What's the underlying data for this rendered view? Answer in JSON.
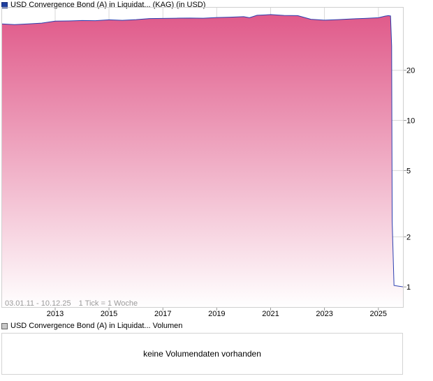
{
  "price_legend": "USD Convergence Bond (A) in Liquidat... (KAG) (in USD)",
  "volume_legend": "USD Convergence Bond (A) in Liquidat... Volumen",
  "range_label": "03.01.11 - 10.12.25",
  "tick_label": "1 Tick = 1 Woche",
  "volume_message": "keine Volumendaten vorhanden",
  "colors": {
    "line": "#2b3fb0",
    "fill_top": "#e05a8a",
    "fill_bottom": "#ffffff",
    "grid": "#d9d9d9"
  },
  "chart_data": {
    "type": "area",
    "yscale": "log",
    "ylim": [
      0.75,
      48
    ],
    "xlim": [
      "2011-01-03",
      "2025-12-10"
    ],
    "x_ticks": [
      "2013",
      "2015",
      "2017",
      "2019",
      "2021",
      "2023",
      "2025"
    ],
    "y_ticks": [
      1,
      2,
      5,
      10,
      20
    ],
    "grid": true,
    "series": [
      {
        "x": [
          "2011-01-03",
          "2011-07-01",
          "2012-01-02",
          "2012-07-02",
          "2013-01-02",
          "2013-07-01",
          "2014-01-02",
          "2014-07-01",
          "2015-01-02",
          "2015-07-01",
          "2016-01-04",
          "2016-07-01",
          "2017-01-02",
          "2017-07-03",
          "2018-01-02",
          "2018-07-02",
          "2019-01-02",
          "2019-07-01",
          "2020-01-02",
          "2020-03-20",
          "2020-07-01",
          "2021-01-04",
          "2021-07-01",
          "2022-01-03",
          "2022-07-01",
          "2023-01-02",
          "2023-07-03",
          "2024-01-02",
          "2024-07-01",
          "2025-01-02",
          "2025-04-01",
          "2025-05-15",
          "2025-06-15",
          "2025-06-30",
          "2025-07-07",
          "2025-08-01",
          "2025-10-01",
          "2025-12-10"
        ],
        "values": [
          38.0,
          37.6,
          38.0,
          38.4,
          39.5,
          39.6,
          39.8,
          39.7,
          40.2,
          39.9,
          40.3,
          40.9,
          41.0,
          41.1,
          41.2,
          41.1,
          41.5,
          41.7,
          42.0,
          41.4,
          42.8,
          43.2,
          42.7,
          42.6,
          40.5,
          40.0,
          40.3,
          40.7,
          41.0,
          41.4,
          42.3,
          42.6,
          42.4,
          28.0,
          2.5,
          1.02,
          1.01,
          1.0
        ]
      }
    ]
  }
}
